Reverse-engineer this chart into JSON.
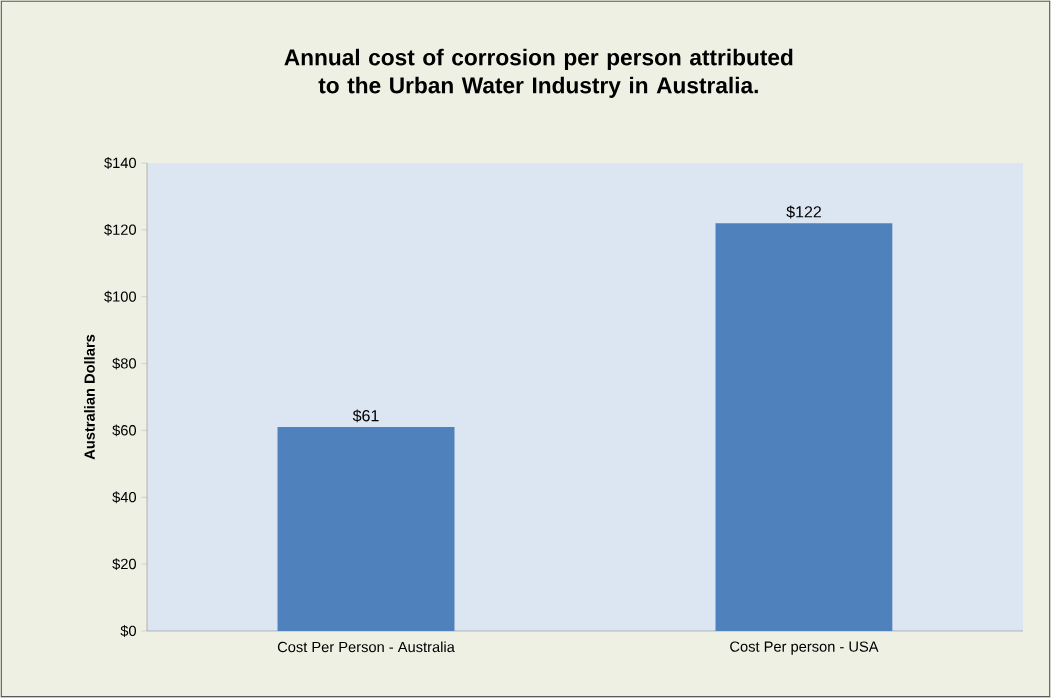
{
  "chart_data": {
    "type": "bar",
    "title": "Annual cost of corrosion per person attributed to the Urban Water Industry in Australia.",
    "ylabel": "Australian Dollars",
    "categories": [
      "Cost Per Person - Australia",
      "Cost Per person - USA"
    ],
    "values": [
      61,
      122
    ],
    "color": "#4f81bd",
    "value_labels": [
      "$61",
      "$122"
    ],
    "ylim": [
      0,
      140
    ],
    "yticks": [
      {
        "value": 0,
        "label": "$0"
      },
      {
        "value": 20,
        "label": "$20"
      },
      {
        "value": 40,
        "label": "$40"
      },
      {
        "value": 60,
        "label": "$60"
      },
      {
        "value": 80,
        "label": "$80"
      },
      {
        "value": 100,
        "label": "$100"
      },
      {
        "value": 120,
        "label": "$120"
      },
      {
        "value": 140,
        "label": "$140"
      }
    ],
    "grid": false
  }
}
